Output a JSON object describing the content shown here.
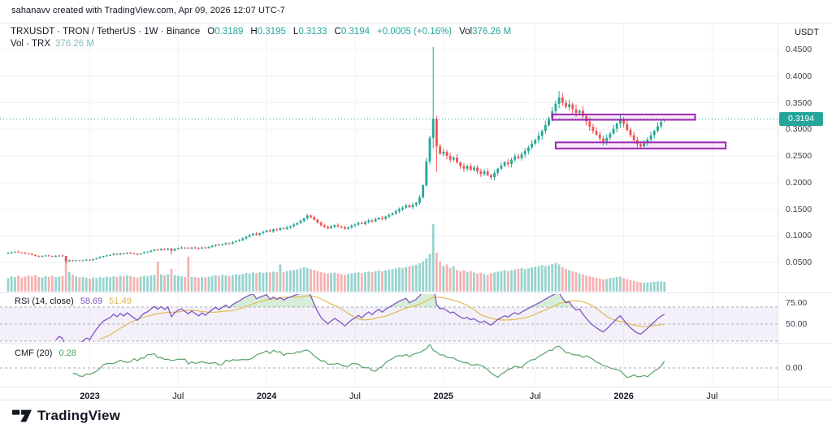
{
  "attribution": "sahanavv created with TradingView.com, Apr 09, 2026 12:07 UTC-7",
  "legend": {
    "title": "TRXUSDT · TRON / TetherUS · 1W · Binance",
    "o_label": "O",
    "o": "0.3189",
    "h_label": "H",
    "h": "0.3195",
    "l_label": "L",
    "l": "0.3133",
    "c_label": "C",
    "c": "0.3194",
    "change": "+0.0005 (+0.16%)",
    "vol_label": "Vol",
    "vol": "376.26 M",
    "row2_label": "Vol · TRX",
    "row2_value": "376.26 M"
  },
  "price_axis": {
    "currency": "USDT",
    "ticks": [
      "0.4500",
      "0.4000",
      "0.3500",
      "0.3000",
      "0.2500",
      "0.2000",
      "0.1500",
      "0.1000",
      "0.0500"
    ],
    "last_price": "0.3194"
  },
  "time_axis": {
    "ticks": [
      {
        "label": "2023",
        "week": 24,
        "bold": true
      },
      {
        "label": "Jul",
        "week": 50,
        "bold": false
      },
      {
        "label": "2024",
        "week": 76,
        "bold": true
      },
      {
        "label": "Jul",
        "week": 102,
        "bold": false
      },
      {
        "label": "2025",
        "week": 128,
        "bold": true
      },
      {
        "label": "Jul",
        "week": 155,
        "bold": false
      },
      {
        "label": "2026",
        "week": 181,
        "bold": true
      },
      {
        "label": "Jul",
        "week": 207,
        "bold": false
      }
    ]
  },
  "rsi": {
    "title": "RSI (14, close)",
    "value": "58.69",
    "ma_value": "51.49",
    "axis_labels": [
      {
        "label": "75.00",
        "level": 75
      },
      {
        "label": "50.00",
        "level": 50
      }
    ],
    "band_levels": [
      70,
      50,
      30
    ]
  },
  "cmf": {
    "title": "CMF (20)",
    "value": "0.28",
    "zero_label": "0.00"
  },
  "logo": {
    "text": "TradingView"
  },
  "colors": {
    "up": "#26a69a",
    "down": "#ef5350",
    "vol_up": "rgba(38,166,154,0.48)",
    "vol_down": "rgba(239,83,80,0.45)",
    "price_line": "#26a69a",
    "rect_stroke": "#9c27b0",
    "rect_fill": "rgba(156,39,176,0.10)",
    "rsi_line": "#7e57c2",
    "rsi_ma": "#e0ba52",
    "rsi_band": "rgba(126,87,194,0.09)",
    "rsi_overbought_fill": "rgba(76,175,80,0.22)",
    "cmf_line": "#5aa06a",
    "dashed": "#a9aeb8",
    "grid_h": "#eef0f4",
    "grid_v": "#f3f4f7",
    "badge_bg": "#26a69a"
  },
  "drawings": {
    "rectangles": [
      {
        "name": "resistance-zone",
        "week_start": 160,
        "week_end": 202,
        "price_low": 0.318,
        "price_high": 0.328
      },
      {
        "name": "support-zone",
        "week_start": 161,
        "week_end": 211,
        "price_low": 0.264,
        "price_high": 0.2755
      }
    ]
  },
  "chart_data": {
    "type": "candlestick",
    "symbol": "TRXUSDT",
    "exchange": "Binance",
    "interval": "1W",
    "start_date": "2022-07-18",
    "weeks": 194,
    "visible_price_range": [
      0.03,
      0.46
    ],
    "price_axis_ticks": [
      0.45,
      0.4,
      0.35,
      0.3,
      0.25,
      0.2,
      0.15,
      0.1,
      0.05
    ],
    "last_price_line": 0.3194,
    "closes": [
      0.068,
      0.069,
      0.07,
      0.069,
      0.068,
      0.067,
      0.066,
      0.064,
      0.062,
      0.061,
      0.062,
      0.063,
      0.062,
      0.061,
      0.062,
      0.063,
      0.062,
      0.052,
      0.054,
      0.053,
      0.054,
      0.053,
      0.054,
      0.055,
      0.054,
      0.056,
      0.058,
      0.06,
      0.062,
      0.063,
      0.064,
      0.066,
      0.065,
      0.067,
      0.066,
      0.068,
      0.067,
      0.066,
      0.065,
      0.067,
      0.069,
      0.07,
      0.072,
      0.074,
      0.073,
      0.075,
      0.074,
      0.076,
      0.072,
      0.075,
      0.077,
      0.078,
      0.077,
      0.076,
      0.078,
      0.077,
      0.076,
      0.078,
      0.077,
      0.079,
      0.081,
      0.083,
      0.082,
      0.084,
      0.086,
      0.085,
      0.088,
      0.09,
      0.092,
      0.095,
      0.098,
      0.101,
      0.104,
      0.102,
      0.105,
      0.107,
      0.11,
      0.108,
      0.112,
      0.111,
      0.114,
      0.113,
      0.116,
      0.118,
      0.121,
      0.124,
      0.128,
      0.133,
      0.138,
      0.135,
      0.13,
      0.125,
      0.12,
      0.117,
      0.114,
      0.117,
      0.12,
      0.118,
      0.116,
      0.113,
      0.116,
      0.119,
      0.121,
      0.124,
      0.122,
      0.126,
      0.129,
      0.127,
      0.131,
      0.134,
      0.132,
      0.136,
      0.139,
      0.142,
      0.146,
      0.15,
      0.153,
      0.157,
      0.154,
      0.158,
      0.162,
      0.172,
      0.195,
      0.24,
      0.284,
      0.32,
      0.268,
      0.254,
      0.258,
      0.25,
      0.243,
      0.247,
      0.238,
      0.231,
      0.226,
      0.231,
      0.224,
      0.228,
      0.221,
      0.216,
      0.221,
      0.214,
      0.21,
      0.218,
      0.226,
      0.232,
      0.238,
      0.235,
      0.243,
      0.249,
      0.246,
      0.253,
      0.259,
      0.266,
      0.273,
      0.28,
      0.288,
      0.297,
      0.308,
      0.32,
      0.334,
      0.348,
      0.36,
      0.35,
      0.342,
      0.347,
      0.338,
      0.331,
      0.335,
      0.325,
      0.315,
      0.305,
      0.297,
      0.29,
      0.283,
      0.277,
      0.284,
      0.292,
      0.301,
      0.311,
      0.32,
      0.31,
      0.299,
      0.289,
      0.28,
      0.272,
      0.268,
      0.274,
      0.281,
      0.289,
      0.297,
      0.306,
      0.314,
      0.3194
    ],
    "volumes_m": [
      520,
      585,
      560,
      610,
      540,
      575,
      620,
      590,
      640,
      565,
      545,
      595,
      570,
      615,
      550,
      580,
      605,
      1300,
      760,
      660,
      590,
      555,
      570,
      540,
      500,
      545,
      520,
      565,
      540,
      580,
      555,
      600,
      570,
      615,
      585,
      625,
      595,
      560,
      535,
      575,
      610,
      590,
      630,
      650,
      1150,
      660,
      625,
      670,
      880,
      640,
      610,
      585,
      560,
      1350,
      570,
      550,
      530,
      560,
      545,
      575,
      605,
      635,
      610,
      650,
      625,
      600,
      640,
      670,
      655,
      690,
      720,
      700,
      740,
      710,
      745,
      725,
      760,
      735,
      770,
      745,
      1050,
      755,
      790,
      810,
      835,
      860,
      900,
      940,
      910,
      870,
      830,
      790,
      750,
      720,
      690,
      710,
      730,
      700,
      670,
      650,
      680,
      705,
      720,
      745,
      715,
      750,
      775,
      755,
      790,
      810,
      785,
      820,
      845,
      870,
      900,
      930,
      905,
      940,
      970,
      1000,
      1040,
      1090,
      1160,
      1280,
      1450,
      2600,
      1500,
      1150,
      980,
      1050,
      920,
      980,
      840,
      780,
      820,
      760,
      800,
      740,
      700,
      730,
      680,
      650,
      700,
      740,
      770,
      800,
      830,
      790,
      820,
      850,
      880,
      910,
      870,
      900,
      930,
      960,
      990,
      1020,
      980,
      1010,
      1060,
      1100,
      1050,
      950,
      880,
      830,
      780,
      740,
      700,
      660,
      620,
      590,
      560,
      530,
      500,
      470,
      490,
      520,
      540,
      560,
      580,
      520,
      480,
      440,
      410,
      380,
      360,
      340,
      355,
      370,
      385,
      400,
      390,
      376
    ],
    "wick_overrides": {
      "17": {
        "l": 0.048
      },
      "48": {
        "l": 0.064
      },
      "125": {
        "h": 0.455,
        "l": 0.265
      },
      "126": {
        "l": 0.22
      },
      "142": {
        "l": 0.205
      },
      "162": {
        "h": 0.372
      }
    },
    "last": {
      "o": 0.3189,
      "h": 0.3195,
      "l": 0.3133,
      "c": 0.3194,
      "vol_m": 376.26
    },
    "indicators": [
      {
        "name": "RSI",
        "params": [
          14,
          "close"
        ],
        "last": 58.69,
        "ma_last": 51.49,
        "pane_range": [
          30,
          85
        ]
      },
      {
        "name": "CMF",
        "params": [
          20
        ],
        "last": 0.28,
        "pane_range": [
          -0.3,
          0.42
        ]
      }
    ]
  }
}
